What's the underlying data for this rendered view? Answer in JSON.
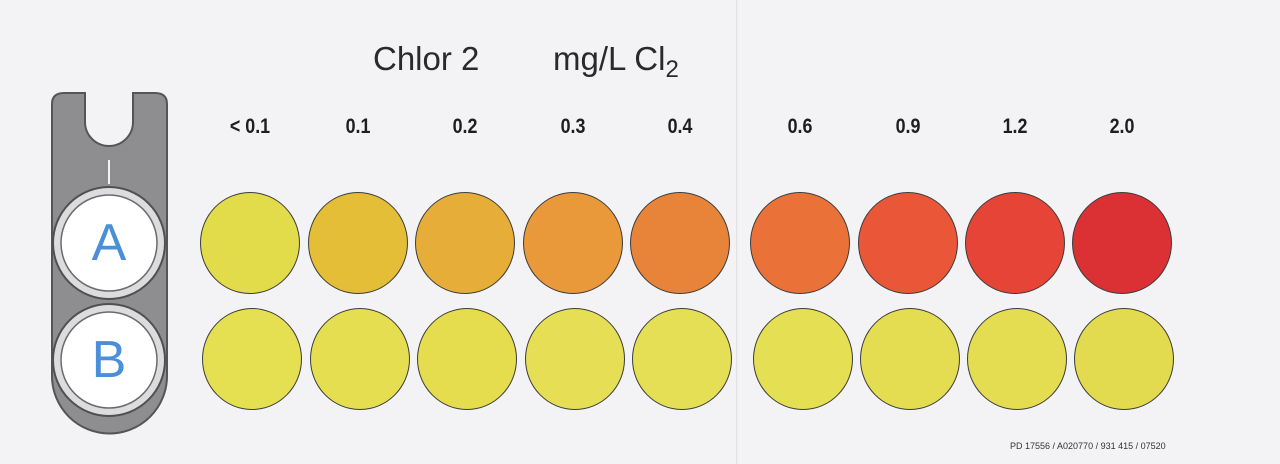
{
  "card": {
    "title": "Chlor 2",
    "unit_main": "mg/L Cl",
    "unit_sub": "2",
    "reference_code": "PD 17556 / A020770 / 931 415 / 07520"
  },
  "holder": {
    "cell_a_label": "A",
    "cell_b_label": "B"
  },
  "scale": [
    {
      "value": "< 0.1",
      "color_a": "#e2db4a",
      "color_b": "#e5df52"
    },
    {
      "value": "0.1",
      "color_a": "#e4be36",
      "color_b": "#e5de50"
    },
    {
      "value": "0.2",
      "color_a": "#e6ae38",
      "color_b": "#e5dc4e"
    },
    {
      "value": "0.3",
      "color_a": "#e9983a",
      "color_b": "#e6df56"
    },
    {
      "value": "0.4",
      "color_a": "#e7843a",
      "color_b": "#e5df55"
    },
    {
      "value": "0.6",
      "color_a": "#ea7239",
      "color_b": "#e5df53"
    },
    {
      "value": "0.9",
      "color_a": "#ea5638",
      "color_b": "#e4dd52"
    },
    {
      "value": "1.2",
      "color_a": "#e64436",
      "color_b": "#e4dc51"
    },
    {
      "value": "2.0",
      "color_a": "#db3034",
      "color_b": "#e2da4f"
    }
  ]
}
